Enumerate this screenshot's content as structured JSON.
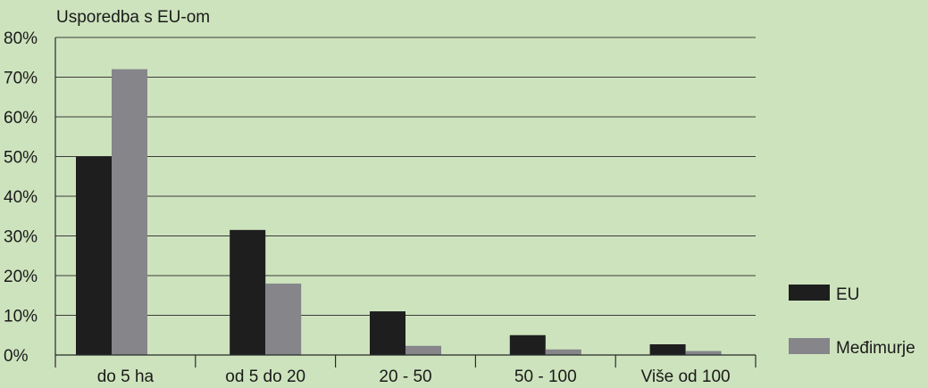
{
  "chart_data": {
    "type": "bar",
    "title": "Usporedba s EU-om",
    "categories": [
      "do 5 ha",
      "od 5 do 20",
      "20 - 50",
      "50 - 100",
      "Više od 100"
    ],
    "series": [
      {
        "name": "EU",
        "color": "#1e1e1e",
        "values": [
          50,
          31.5,
          11,
          5,
          2.7
        ]
      },
      {
        "name": "Međimurje",
        "color": "#85858a",
        "values": [
          72,
          18,
          2.3,
          1.4,
          1
        ]
      }
    ],
    "ylim": [
      0,
      80
    ],
    "yticks": [
      0,
      10,
      20,
      30,
      40,
      50,
      60,
      70,
      80
    ],
    "ytick_labels": [
      "0%",
      "10%",
      "20%",
      "30%",
      "40%",
      "50%",
      "60%",
      "70%",
      "80%"
    ],
    "xlabel": "",
    "ylabel": "",
    "grid": true,
    "legend_position": "right",
    "background_color": "#cde3bd"
  }
}
